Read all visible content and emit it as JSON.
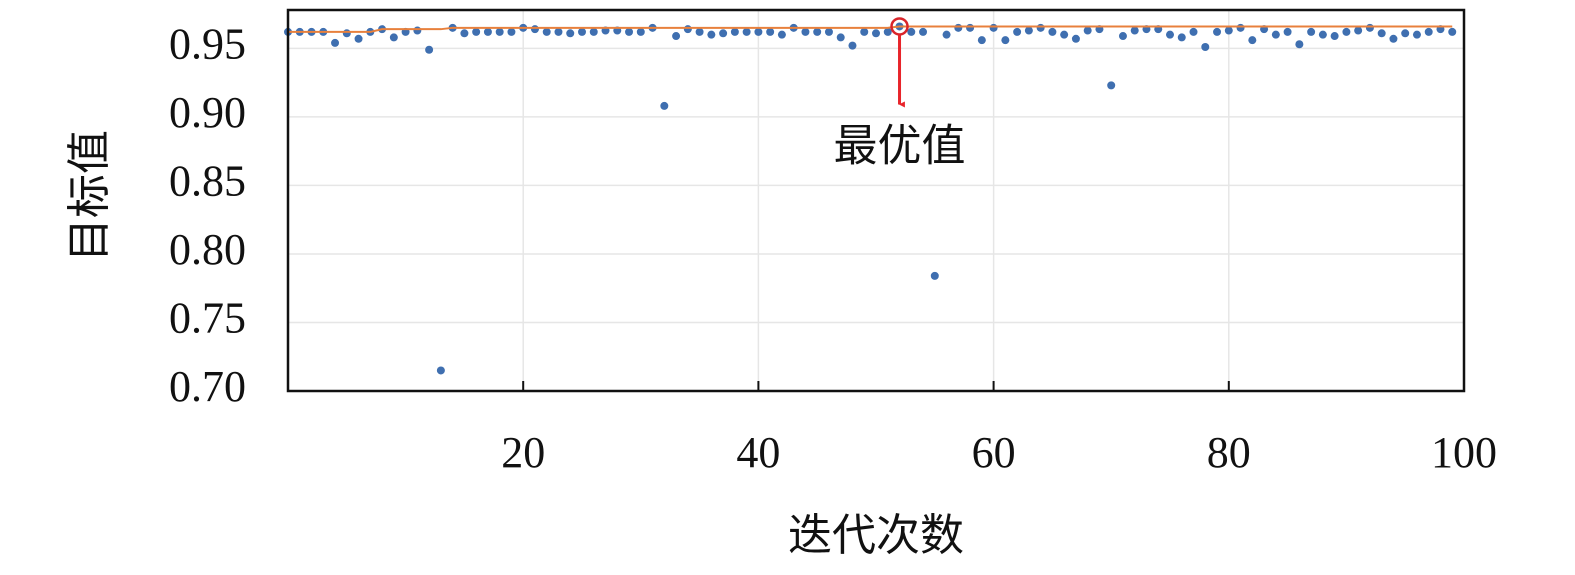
{
  "chart_data": {
    "type": "scatter",
    "xlabel": "迭代次数",
    "ylabel": "目标值",
    "annotation": "最优值",
    "x": [
      0,
      1,
      2,
      3,
      4,
      5,
      6,
      7,
      8,
      9,
      10,
      11,
      12,
      13,
      14,
      15,
      16,
      17,
      18,
      19,
      20,
      21,
      22,
      23,
      24,
      25,
      26,
      27,
      28,
      29,
      30,
      31,
      32,
      33,
      34,
      35,
      36,
      37,
      38,
      39,
      40,
      41,
      42,
      43,
      44,
      45,
      46,
      47,
      48,
      49,
      50,
      51,
      52,
      53,
      54,
      55,
      56,
      57,
      58,
      59,
      60,
      61,
      62,
      63,
      64,
      65,
      66,
      67,
      68,
      69,
      70,
      71,
      72,
      73,
      74,
      75,
      76,
      77,
      78,
      79,
      80,
      81,
      82,
      83,
      84,
      85,
      86,
      87,
      88,
      89,
      90,
      91,
      92,
      93,
      94,
      95,
      96,
      97,
      98,
      99
    ],
    "series": [
      {
        "color": "#3f6fb0",
        "values": [
          0.962,
          0.962,
          0.962,
          0.962,
          0.954,
          0.961,
          0.957,
          0.962,
          0.964,
          0.958,
          0.962,
          0.963,
          0.949,
          0.715,
          0.965,
          0.961,
          0.962,
          0.962,
          0.962,
          0.962,
          0.965,
          0.964,
          0.962,
          0.962,
          0.961,
          0.962,
          0.962,
          0.963,
          0.963,
          0.962,
          0.962,
          0.965,
          0.908,
          0.959,
          0.964,
          0.962,
          0.96,
          0.961,
          0.962,
          0.962,
          0.962,
          0.962,
          0.96,
          0.965,
          0.962,
          0.962,
          0.962,
          0.958,
          0.952,
          0.962,
          0.961,
          0.962,
          0.966,
          0.962,
          0.962,
          0.784,
          0.96,
          0.965,
          0.965,
          0.956,
          0.965,
          0.956,
          0.962,
          0.963,
          0.965,
          0.962,
          0.96,
          0.957,
          0.963,
          0.964,
          0.923,
          0.959,
          0.963,
          0.964,
          0.964,
          0.96,
          0.958,
          0.962,
          0.951,
          0.962,
          0.963,
          0.965,
          0.956,
          0.964,
          0.96,
          0.962,
          0.953,
          0.962,
          0.96,
          0.959,
          0.962,
          0.963,
          0.965,
          0.961,
          0.957,
          0.961,
          0.96,
          0.962,
          0.964,
          0.962
        ]
      },
      {
        "color": "#e8803c",
        "style": "line",
        "values": [
          0.962,
          0.962,
          0.962,
          0.962,
          0.962,
          0.962,
          0.962,
          0.962,
          0.964,
          0.964,
          0.964,
          0.964,
          0.964,
          0.964,
          0.965,
          0.965,
          0.965,
          0.965,
          0.965,
          0.965,
          0.965,
          0.965,
          0.965,
          0.965,
          0.965,
          0.965,
          0.965,
          0.965,
          0.965,
          0.965,
          0.965,
          0.965,
          0.965,
          0.965,
          0.965,
          0.965,
          0.965,
          0.965,
          0.965,
          0.965,
          0.965,
          0.965,
          0.965,
          0.965,
          0.965,
          0.965,
          0.965,
          0.965,
          0.965,
          0.965,
          0.965,
          0.965,
          0.966,
          0.966,
          0.966,
          0.966,
          0.966,
          0.966,
          0.966,
          0.966,
          0.966,
          0.966,
          0.966,
          0.966,
          0.966,
          0.966,
          0.966,
          0.966,
          0.966,
          0.966,
          0.966,
          0.966,
          0.966,
          0.966,
          0.966,
          0.966,
          0.966,
          0.966,
          0.966,
          0.966,
          0.966,
          0.966,
          0.966,
          0.966,
          0.966,
          0.966,
          0.966,
          0.966,
          0.966,
          0.966,
          0.966,
          0.966,
          0.966,
          0.966,
          0.966,
          0.966,
          0.966,
          0.966,
          0.966,
          0.966
        ]
      }
    ],
    "xlim": [
      0,
      100
    ],
    "xticks": [
      20,
      40,
      60,
      80,
      100
    ],
    "ylim": [
      0.7,
      0.978
    ],
    "yticks": [
      {
        "value": 0.7,
        "label": "0.70"
      },
      0.75,
      {
        "value": 0.8,
        "label": "0.80"
      },
      0.85,
      {
        "value": 0.9,
        "label": "0.90"
      },
      0.95
    ],
    "grid": true
  }
}
